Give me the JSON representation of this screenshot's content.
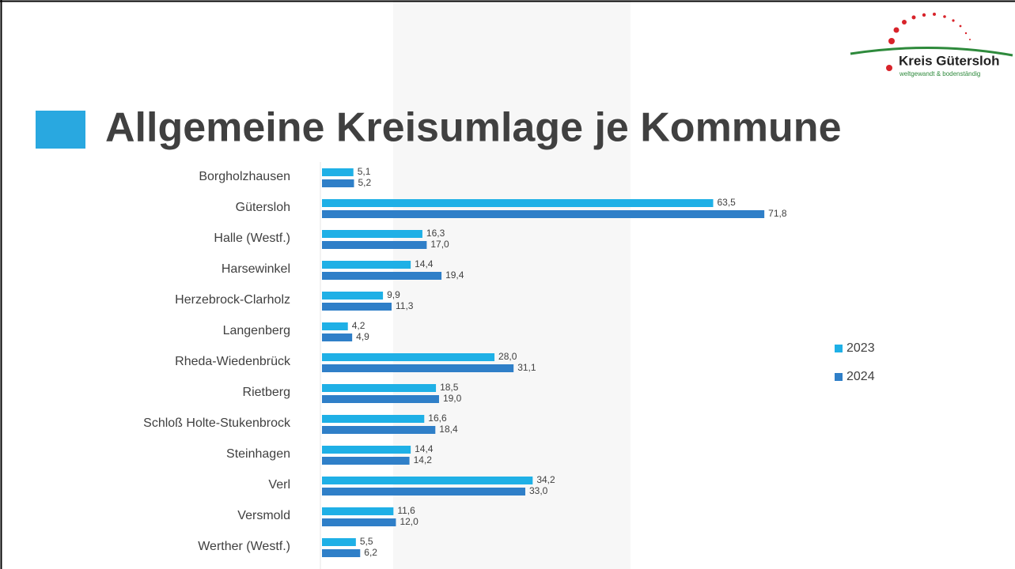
{
  "logo": {
    "name": "Kreis Gütersloh",
    "tagline": "weltgewandt & bodenständig"
  },
  "chart_data": {
    "type": "hbar",
    "title": "Allgemeine Kreisumlage je Kommune",
    "categories": [
      "Borgholzhausen",
      "Gütersloh",
      "Halle (Westf.)",
      "Harsewinkel",
      "Herzebrock-Clarholz",
      "Langenberg",
      "Rheda-Wiedenbrück",
      "Rietberg",
      "Schloß Holte-Stukenbrock",
      "Steinhagen",
      "Verl",
      "Versmold",
      "Werther (Westf.)"
    ],
    "series": [
      {
        "name": "2023",
        "color": "#1fb0e6",
        "values": [
          5.1,
          63.5,
          16.3,
          14.4,
          9.9,
          4.2,
          28.0,
          18.5,
          16.6,
          14.4,
          34.2,
          11.6,
          5.5
        ],
        "value_labels": [
          "5,1",
          "63,5",
          "16,3",
          "14,4",
          "9,9",
          "4,2",
          "28,0",
          "18,5",
          "16,6",
          "14,4",
          "34,2",
          "11,6",
          "5,5"
        ]
      },
      {
        "name": "2024",
        "color": "#2f7fc8",
        "values": [
          5.2,
          71.8,
          17.0,
          19.4,
          11.3,
          4.9,
          31.1,
          19.0,
          18.4,
          14.2,
          33.0,
          12.0,
          6.2
        ],
        "value_labels": [
          "5,2",
          "71,8",
          "17,0",
          "19,4",
          "11,3",
          "4,9",
          "31,1",
          "19,0",
          "18,4",
          "14,2",
          "33,0",
          "12,0",
          "6,2"
        ]
      }
    ],
    "xlim": [
      0,
      80
    ],
    "legend": "right"
  }
}
